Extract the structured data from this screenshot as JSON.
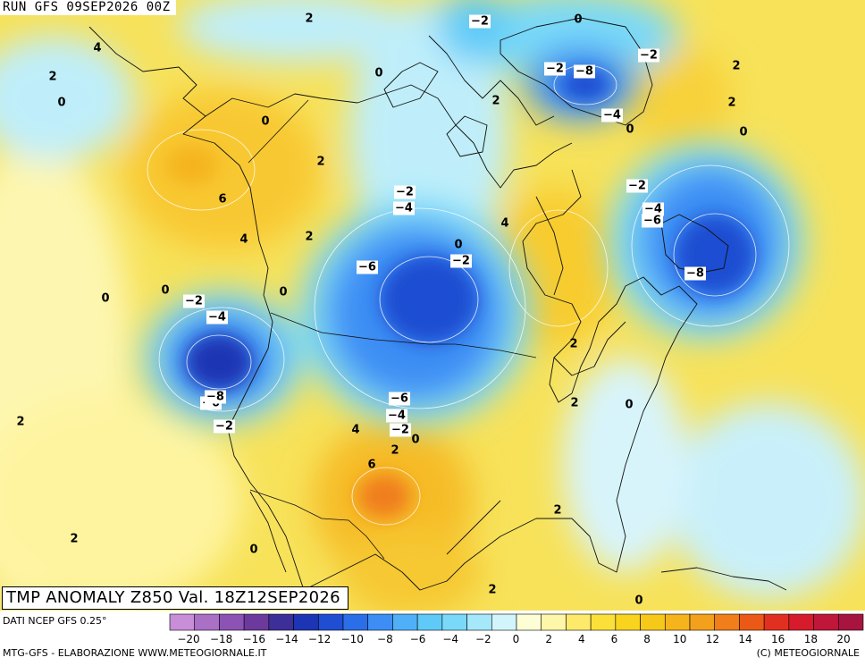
{
  "header": {
    "run": "RUN GFS 09SEP2026 00Z"
  },
  "title": {
    "text": "TMP ANOMALY Z850 Val. 18Z12SEP2026"
  },
  "footer": {
    "source": "DATI NCEP GFS 0.25°",
    "credit_left": "MTG-GFS - ELABORAZIONE WWW.METEOGIORNALE.IT",
    "credit_right": "(C) METEOGIORNALE"
  },
  "colorbar": {
    "colors": [
      "#c88ed8",
      "#a970c6",
      "#8c52b4",
      "#6c3a9c",
      "#3d2f98",
      "#1d34b4",
      "#1f4ed2",
      "#2a6ee8",
      "#3d8ef4",
      "#4fb0f8",
      "#5fcaf8",
      "#7ad9f8",
      "#a5e8fa",
      "#d2f5fc",
      "#fefed6",
      "#fef6a8",
      "#fdea6a",
      "#fbe03a",
      "#f8d41e",
      "#f6c81a",
      "#f5b41c",
      "#f3a01c",
      "#f07e1a",
      "#ea5a16",
      "#e23020",
      "#d61c2c",
      "#c0163a",
      "#a81440"
    ],
    "ticks": [
      {
        "v": -20,
        "label": "−20"
      },
      {
        "v": -18,
        "label": "−18"
      },
      {
        "v": -16,
        "label": "−16"
      },
      {
        "v": -14,
        "label": "−14"
      },
      {
        "v": -12,
        "label": "−12"
      },
      {
        "v": -10,
        "label": "−10"
      },
      {
        "v": -8,
        "label": "−8"
      },
      {
        "v": -6,
        "label": "−6"
      },
      {
        "v": -4,
        "label": "−4"
      },
      {
        "v": -2,
        "label": "−2"
      },
      {
        "v": 0,
        "label": "0"
      },
      {
        "v": 2,
        "label": "2"
      },
      {
        "v": 4,
        "label": "4"
      },
      {
        "v": 6,
        "label": "6"
      },
      {
        "v": 8,
        "label": "8"
      },
      {
        "v": 10,
        "label": "10"
      },
      {
        "v": 12,
        "label": "12"
      },
      {
        "v": 14,
        "label": "14"
      },
      {
        "v": 16,
        "label": "16"
      },
      {
        "v": 18,
        "label": "18"
      },
      {
        "v": 20,
        "label": "20"
      }
    ]
  },
  "contour_labels": [
    {
      "t": "2",
      "v": 2
    },
    {
      "t": "−2",
      "v": -2
    },
    {
      "t": "0",
      "v": 0
    },
    {
      "t": "4",
      "v": 4
    },
    {
      "t": "2",
      "v": 2
    },
    {
      "t": "0",
      "v": 0
    },
    {
      "t": "0",
      "v": 0
    },
    {
      "t": "−2",
      "v": -2
    },
    {
      "t": "−8",
      "v": -8
    },
    {
      "t": "−2",
      "v": -2
    },
    {
      "t": "2",
      "v": 2
    },
    {
      "t": "2",
      "v": 2
    },
    {
      "t": "−4",
      "v": -4
    },
    {
      "t": "0",
      "v": 0
    },
    {
      "t": "0",
      "v": 0
    },
    {
      "t": "2",
      "v": 2
    },
    {
      "t": "0",
      "v": 0
    },
    {
      "t": "6",
      "v": 6
    },
    {
      "t": "−2",
      "v": -2
    },
    {
      "t": "−4",
      "v": -4
    },
    {
      "t": "2",
      "v": 2
    },
    {
      "t": "−2",
      "v": -2
    },
    {
      "t": "4",
      "v": 4
    },
    {
      "t": "4",
      "v": 4
    },
    {
      "t": "2",
      "v": 2
    },
    {
      "t": "−4",
      "v": -4
    },
    {
      "t": "−6",
      "v": -6
    },
    {
      "t": "0",
      "v": 0
    },
    {
      "t": "−2",
      "v": -2
    },
    {
      "t": "−6",
      "v": -6
    },
    {
      "t": "0",
      "v": 0
    },
    {
      "t": "0",
      "v": 0
    },
    {
      "t": "−8",
      "v": -8
    },
    {
      "t": "−2",
      "v": -2
    },
    {
      "t": "0",
      "v": 0
    },
    {
      "t": "−4",
      "v": -4
    },
    {
      "t": "2",
      "v": 2
    },
    {
      "t": "−6",
      "v": -6
    },
    {
      "t": "−8",
      "v": -8
    },
    {
      "t": "2",
      "v": 2
    },
    {
      "t": "0",
      "v": 0
    },
    {
      "t": "−6",
      "v": -6
    },
    {
      "t": "−4",
      "v": -4
    },
    {
      "t": "−2",
      "v": -2
    },
    {
      "t": "0",
      "v": 0
    },
    {
      "t": "4",
      "v": 4
    },
    {
      "t": "2",
      "v": 2
    },
    {
      "t": "2",
      "v": 2
    },
    {
      "t": "−2",
      "v": -2
    },
    {
      "t": "6",
      "v": 6
    },
    {
      "t": "2",
      "v": 2
    },
    {
      "t": "2",
      "v": 2
    },
    {
      "t": "0",
      "v": 0
    },
    {
      "t": "2",
      "v": 2
    },
    {
      "t": "0",
      "v": 0
    }
  ]
}
